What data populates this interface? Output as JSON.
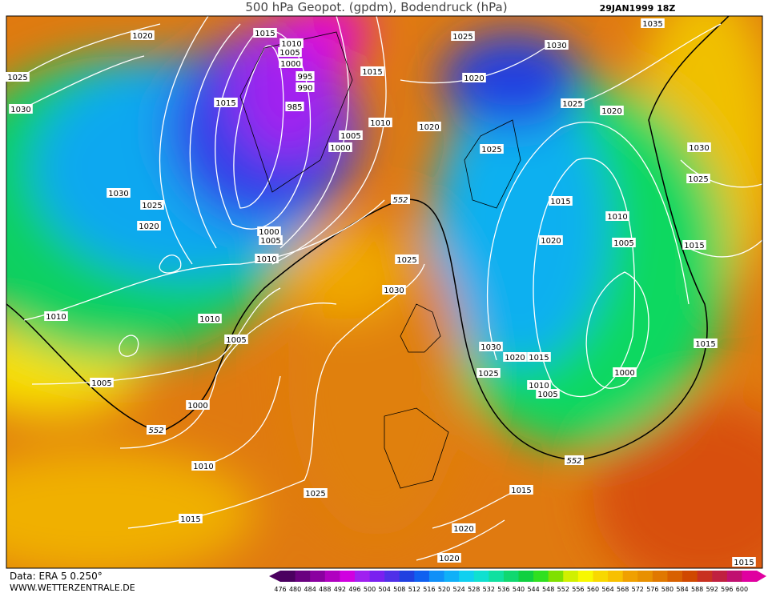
{
  "header": {
    "title": "500 hPa Geopot. (gpdm), Bodendruck (hPa)",
    "date": "29JAN1999 18Z"
  },
  "footer": {
    "source": "Data: ERA 5 0.250°",
    "website": "WWW.WETTERZENTRALE.DE"
  },
  "legend": {
    "values": [
      476,
      480,
      484,
      488,
      492,
      496,
      500,
      504,
      508,
      512,
      516,
      520,
      524,
      528,
      532,
      536,
      540,
      544,
      548,
      552,
      556,
      560,
      564,
      568,
      572,
      576,
      580,
      584,
      588,
      592,
      596,
      600
    ],
    "colors": [
      "#4b0060",
      "#6a0080",
      "#8a00a0",
      "#b000c0",
      "#d000e0",
      "#a020f0",
      "#7a20f0",
      "#5030e8",
      "#2040e0",
      "#1060f0",
      "#1090f8",
      "#10b0f8",
      "#10d0f0",
      "#10e0d0",
      "#10e0a0",
      "#10d870",
      "#10d040",
      "#30e020",
      "#80e000",
      "#d0f000",
      "#f8f800",
      "#f8d800",
      "#f8c000",
      "#f0a000",
      "#e89000",
      "#e07800",
      "#d86000",
      "#d04800",
      "#c83020",
      "#c02040",
      "#c01070",
      "#e000a0"
    ]
  },
  "isobars": [
    "1020",
    "1015",
    "1010",
    "1005",
    "1000",
    "995",
    "990",
    "985",
    "1025",
    "1030",
    "1015",
    "1015",
    "1010",
    "1005",
    "1000",
    "1025",
    "1030",
    "1035",
    "1020",
    "1025",
    "1020",
    "1020",
    "1025",
    "1030",
    "1025",
    "1030",
    "1025",
    "1020",
    "1015",
    "1010",
    "1020",
    "1005",
    "1015",
    "1010",
    "1005",
    "1000",
    "1025",
    "1030",
    "1010",
    "1010",
    "1005",
    "1015",
    "1030",
    "1020",
    "1015",
    "1025",
    "1000",
    "1010",
    "1005",
    "1005",
    "1000",
    "1010",
    "1025",
    "1015",
    "1015",
    "1020",
    "1020",
    "1015"
  ],
  "contour_labels": [
    "552",
    "552",
    "552"
  ]
}
